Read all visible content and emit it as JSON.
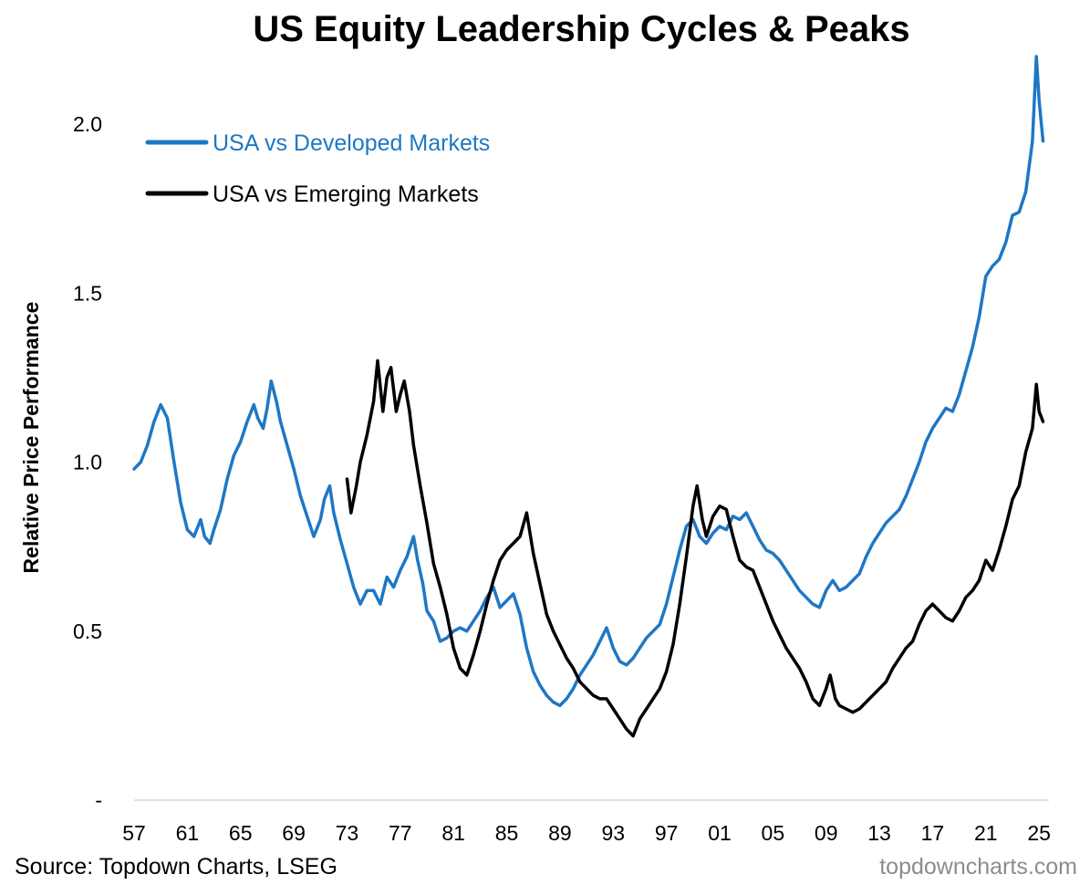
{
  "chart_data": {
    "type": "line",
    "title": "US Equity Leadership Cycles & Peaks",
    "xlabel": "",
    "ylabel": "Relative Price Performance",
    "xlim": [
      1957,
      2025.4
    ],
    "ylim": [
      0,
      2.2
    ],
    "y_ticks": [
      0,
      0.5,
      1.0,
      1.5,
      2.0
    ],
    "y_tick_labels": [
      "-",
      "0.5",
      "1.0",
      "1.5",
      "2.0"
    ],
    "x_ticks": [
      1957,
      1961,
      1965,
      1969,
      1973,
      1977,
      1981,
      1985,
      1989,
      1993,
      1997,
      2001,
      2005,
      2009,
      2013,
      2017,
      2021,
      2025
    ],
    "x_tick_labels": [
      "57",
      "61",
      "65",
      "69",
      "73",
      "77",
      "81",
      "85",
      "89",
      "93",
      "97",
      "01",
      "05",
      "09",
      "13",
      "17",
      "21",
      "25"
    ],
    "series": [
      {
        "name": "USA vs Developed Markets",
        "color": "#1f77c4",
        "points": [
          [
            1957.0,
            0.98
          ],
          [
            1957.5,
            1.0
          ],
          [
            1958.0,
            1.05
          ],
          [
            1958.5,
            1.12
          ],
          [
            1959.0,
            1.17
          ],
          [
            1959.5,
            1.13
          ],
          [
            1960.0,
            1.0
          ],
          [
            1960.5,
            0.88
          ],
          [
            1961.0,
            0.8
          ],
          [
            1961.5,
            0.78
          ],
          [
            1962.0,
            0.83
          ],
          [
            1962.3,
            0.78
          ],
          [
            1962.7,
            0.76
          ],
          [
            1963.0,
            0.8
          ],
          [
            1963.5,
            0.86
          ],
          [
            1964.0,
            0.95
          ],
          [
            1964.5,
            1.02
          ],
          [
            1965.0,
            1.06
          ],
          [
            1965.5,
            1.12
          ],
          [
            1966.0,
            1.17
          ],
          [
            1966.3,
            1.13
          ],
          [
            1966.7,
            1.1
          ],
          [
            1967.0,
            1.16
          ],
          [
            1967.3,
            1.24
          ],
          [
            1967.7,
            1.18
          ],
          [
            1968.0,
            1.12
          ],
          [
            1968.5,
            1.05
          ],
          [
            1969.0,
            0.98
          ],
          [
            1969.5,
            0.9
          ],
          [
            1970.0,
            0.84
          ],
          [
            1970.5,
            0.78
          ],
          [
            1971.0,
            0.83
          ],
          [
            1971.3,
            0.89
          ],
          [
            1971.7,
            0.93
          ],
          [
            1972.0,
            0.85
          ],
          [
            1972.5,
            0.77
          ],
          [
            1973.0,
            0.7
          ],
          [
            1973.5,
            0.63
          ],
          [
            1974.0,
            0.58
          ],
          [
            1974.5,
            0.62
          ],
          [
            1975.0,
            0.62
          ],
          [
            1975.5,
            0.58
          ],
          [
            1976.0,
            0.66
          ],
          [
            1976.5,
            0.63
          ],
          [
            1977.0,
            0.68
          ],
          [
            1977.5,
            0.72
          ],
          [
            1978.0,
            0.78
          ],
          [
            1978.3,
            0.71
          ],
          [
            1978.7,
            0.64
          ],
          [
            1979.0,
            0.56
          ],
          [
            1979.5,
            0.53
          ],
          [
            1980.0,
            0.47
          ],
          [
            1980.5,
            0.48
          ],
          [
            1981.0,
            0.5
          ],
          [
            1981.5,
            0.51
          ],
          [
            1982.0,
            0.5
          ],
          [
            1982.5,
            0.53
          ],
          [
            1983.0,
            0.56
          ],
          [
            1983.5,
            0.6
          ],
          [
            1984.0,
            0.63
          ],
          [
            1984.5,
            0.57
          ],
          [
            1985.0,
            0.59
          ],
          [
            1985.5,
            0.61
          ],
          [
            1986.0,
            0.55
          ],
          [
            1986.5,
            0.45
          ],
          [
            1987.0,
            0.38
          ],
          [
            1987.5,
            0.34
          ],
          [
            1988.0,
            0.31
          ],
          [
            1988.5,
            0.29
          ],
          [
            1989.0,
            0.28
          ],
          [
            1989.5,
            0.3
          ],
          [
            1990.0,
            0.33
          ],
          [
            1990.5,
            0.37
          ],
          [
            1991.0,
            0.4
          ],
          [
            1991.5,
            0.43
          ],
          [
            1992.0,
            0.47
          ],
          [
            1992.5,
            0.51
          ],
          [
            1993.0,
            0.45
          ],
          [
            1993.5,
            0.41
          ],
          [
            1994.0,
            0.4
          ],
          [
            1994.5,
            0.42
          ],
          [
            1995.0,
            0.45
          ],
          [
            1995.5,
            0.48
          ],
          [
            1996.0,
            0.5
          ],
          [
            1996.5,
            0.52
          ],
          [
            1997.0,
            0.58
          ],
          [
            1997.5,
            0.66
          ],
          [
            1998.0,
            0.74
          ],
          [
            1998.5,
            0.81
          ],
          [
            1999.0,
            0.83
          ],
          [
            1999.5,
            0.78
          ],
          [
            2000.0,
            0.76
          ],
          [
            2000.5,
            0.79
          ],
          [
            2001.0,
            0.81
          ],
          [
            2001.5,
            0.8
          ],
          [
            2002.0,
            0.84
          ],
          [
            2002.5,
            0.83
          ],
          [
            2003.0,
            0.85
          ],
          [
            2003.5,
            0.81
          ],
          [
            2004.0,
            0.77
          ],
          [
            2004.5,
            0.74
          ],
          [
            2005.0,
            0.73
          ],
          [
            2005.5,
            0.71
          ],
          [
            2006.0,
            0.68
          ],
          [
            2006.5,
            0.65
          ],
          [
            2007.0,
            0.62
          ],
          [
            2007.5,
            0.6
          ],
          [
            2008.0,
            0.58
          ],
          [
            2008.5,
            0.57
          ],
          [
            2009.0,
            0.62
          ],
          [
            2009.5,
            0.65
          ],
          [
            2010.0,
            0.62
          ],
          [
            2010.5,
            0.63
          ],
          [
            2011.0,
            0.65
          ],
          [
            2011.5,
            0.67
          ],
          [
            2012.0,
            0.72
          ],
          [
            2012.5,
            0.76
          ],
          [
            2013.0,
            0.79
          ],
          [
            2013.5,
            0.82
          ],
          [
            2014.0,
            0.84
          ],
          [
            2014.5,
            0.86
          ],
          [
            2015.0,
            0.9
          ],
          [
            2015.5,
            0.95
          ],
          [
            2016.0,
            1.0
          ],
          [
            2016.5,
            1.06
          ],
          [
            2017.0,
            1.1
          ],
          [
            2017.5,
            1.13
          ],
          [
            2018.0,
            1.16
          ],
          [
            2018.5,
            1.15
          ],
          [
            2019.0,
            1.2
          ],
          [
            2019.5,
            1.27
          ],
          [
            2020.0,
            1.34
          ],
          [
            2020.5,
            1.43
          ],
          [
            2021.0,
            1.55
          ],
          [
            2021.5,
            1.58
          ],
          [
            2022.0,
            1.6
          ],
          [
            2022.5,
            1.65
          ],
          [
            2023.0,
            1.73
          ],
          [
            2023.5,
            1.74
          ],
          [
            2024.0,
            1.8
          ],
          [
            2024.5,
            1.95
          ],
          [
            2024.8,
            2.2
          ],
          [
            2025.0,
            2.07
          ],
          [
            2025.3,
            1.95
          ]
        ]
      },
      {
        "name": "USA vs Emerging Markets",
        "color": "#000000",
        "points": [
          [
            1973.0,
            0.95
          ],
          [
            1973.3,
            0.85
          ],
          [
            1973.7,
            0.93
          ],
          [
            1974.0,
            1.0
          ],
          [
            1974.5,
            1.08
          ],
          [
            1975.0,
            1.18
          ],
          [
            1975.3,
            1.3
          ],
          [
            1975.7,
            1.15
          ],
          [
            1976.0,
            1.25
          ],
          [
            1976.3,
            1.28
          ],
          [
            1976.7,
            1.15
          ],
          [
            1977.0,
            1.2
          ],
          [
            1977.3,
            1.24
          ],
          [
            1977.7,
            1.15
          ],
          [
            1978.0,
            1.05
          ],
          [
            1978.5,
            0.93
          ],
          [
            1979.0,
            0.82
          ],
          [
            1979.5,
            0.7
          ],
          [
            1980.0,
            0.63
          ],
          [
            1980.5,
            0.55
          ],
          [
            1981.0,
            0.45
          ],
          [
            1981.5,
            0.39
          ],
          [
            1982.0,
            0.37
          ],
          [
            1982.5,
            0.43
          ],
          [
            1983.0,
            0.5
          ],
          [
            1983.5,
            0.58
          ],
          [
            1984.0,
            0.65
          ],
          [
            1984.5,
            0.71
          ],
          [
            1985.0,
            0.74
          ],
          [
            1985.5,
            0.76
          ],
          [
            1986.0,
            0.78
          ],
          [
            1986.5,
            0.85
          ],
          [
            1987.0,
            0.73
          ],
          [
            1987.5,
            0.64
          ],
          [
            1988.0,
            0.55
          ],
          [
            1988.5,
            0.5
          ],
          [
            1989.0,
            0.46
          ],
          [
            1989.5,
            0.42
          ],
          [
            1990.0,
            0.39
          ],
          [
            1990.5,
            0.35
          ],
          [
            1991.0,
            0.33
          ],
          [
            1991.5,
            0.31
          ],
          [
            1992.0,
            0.3
          ],
          [
            1992.5,
            0.3
          ],
          [
            1993.0,
            0.27
          ],
          [
            1993.5,
            0.24
          ],
          [
            1994.0,
            0.21
          ],
          [
            1994.5,
            0.19
          ],
          [
            1995.0,
            0.24
          ],
          [
            1995.5,
            0.27
          ],
          [
            1996.0,
            0.3
          ],
          [
            1996.5,
            0.33
          ],
          [
            1997.0,
            0.38
          ],
          [
            1997.5,
            0.46
          ],
          [
            1998.0,
            0.58
          ],
          [
            1998.5,
            0.72
          ],
          [
            1999.0,
            0.87
          ],
          [
            1999.3,
            0.93
          ],
          [
            1999.7,
            0.83
          ],
          [
            2000.0,
            0.78
          ],
          [
            2000.5,
            0.84
          ],
          [
            2001.0,
            0.87
          ],
          [
            2001.5,
            0.86
          ],
          [
            2002.0,
            0.78
          ],
          [
            2002.5,
            0.71
          ],
          [
            2003.0,
            0.69
          ],
          [
            2003.5,
            0.68
          ],
          [
            2004.0,
            0.63
          ],
          [
            2004.5,
            0.58
          ],
          [
            2005.0,
            0.53
          ],
          [
            2005.5,
            0.49
          ],
          [
            2006.0,
            0.45
          ],
          [
            2006.5,
            0.42
          ],
          [
            2007.0,
            0.39
          ],
          [
            2007.5,
            0.35
          ],
          [
            2008.0,
            0.3
          ],
          [
            2008.5,
            0.28
          ],
          [
            2009.0,
            0.33
          ],
          [
            2009.3,
            0.37
          ],
          [
            2009.7,
            0.3
          ],
          [
            2010.0,
            0.28
          ],
          [
            2010.5,
            0.27
          ],
          [
            2011.0,
            0.26
          ],
          [
            2011.5,
            0.27
          ],
          [
            2012.0,
            0.29
          ],
          [
            2012.5,
            0.31
          ],
          [
            2013.0,
            0.33
          ],
          [
            2013.5,
            0.35
          ],
          [
            2014.0,
            0.39
          ],
          [
            2014.5,
            0.42
          ],
          [
            2015.0,
            0.45
          ],
          [
            2015.5,
            0.47
          ],
          [
            2016.0,
            0.52
          ],
          [
            2016.5,
            0.56
          ],
          [
            2017.0,
            0.58
          ],
          [
            2017.5,
            0.56
          ],
          [
            2018.0,
            0.54
          ],
          [
            2018.5,
            0.53
          ],
          [
            2019.0,
            0.56
          ],
          [
            2019.5,
            0.6
          ],
          [
            2020.0,
            0.62
          ],
          [
            2020.5,
            0.65
          ],
          [
            2021.0,
            0.71
          ],
          [
            2021.5,
            0.68
          ],
          [
            2022.0,
            0.74
          ],
          [
            2022.5,
            0.81
          ],
          [
            2023.0,
            0.89
          ],
          [
            2023.5,
            0.93
          ],
          [
            2024.0,
            1.03
          ],
          [
            2024.5,
            1.1
          ],
          [
            2024.8,
            1.23
          ],
          [
            2025.0,
            1.15
          ],
          [
            2025.3,
            1.12
          ]
        ]
      }
    ],
    "legend": "top-left"
  },
  "footer": {
    "source": "Source: Topdown Charts, LSEG",
    "brand": "topdowncharts.com"
  }
}
